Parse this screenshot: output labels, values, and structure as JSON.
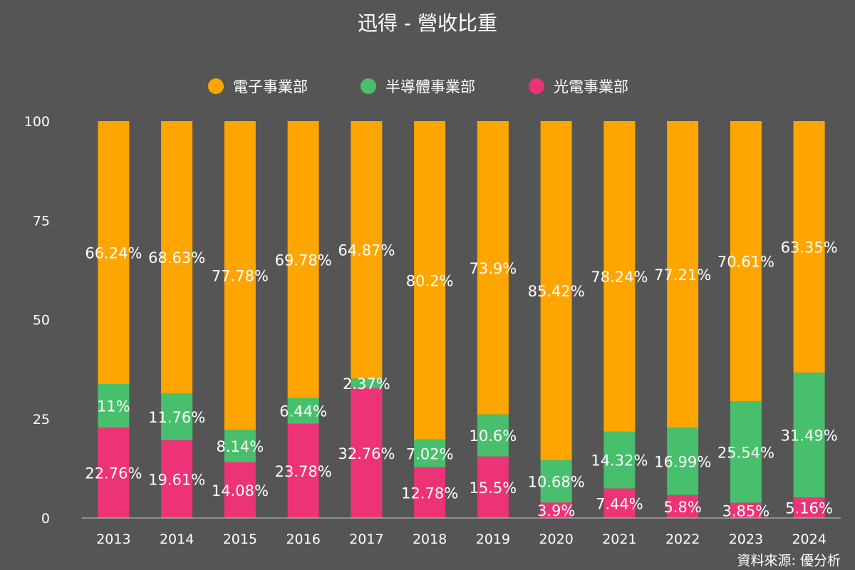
{
  "chart_data": {
    "type": "bar",
    "stacked": true,
    "title": "迅得 - 營收比重",
    "categories": [
      "2013",
      "2014",
      "2015",
      "2016",
      "2017",
      "2018",
      "2019",
      "2020",
      "2021",
      "2022",
      "2023",
      "2024"
    ],
    "series": [
      {
        "name": "光電事業部",
        "color": "#ec3377",
        "values": [
          22.76,
          19.61,
          14.08,
          23.78,
          32.76,
          12.78,
          15.5,
          3.9,
          7.44,
          5.8,
          3.85,
          5.16
        ],
        "labels": [
          "22.76%",
          "19.61%",
          "14.08%",
          "23.78%",
          "32.76%",
          "12.78%",
          "15.5%",
          "3.9%",
          "7.44%",
          "5.8%",
          "3.85%",
          "5.16%"
        ]
      },
      {
        "name": "半導體事業部",
        "color": "#48bf6c",
        "values": [
          11,
          11.76,
          8.14,
          6.44,
          2.37,
          7.02,
          10.6,
          10.68,
          14.32,
          16.99,
          25.54,
          31.49
        ],
        "labels": [
          "11%",
          "11.76%",
          "8.14%",
          "6.44%",
          "2.37%",
          "7.02%",
          "10.6%",
          "10.68%",
          "14.32%",
          "16.99%",
          "25.54%",
          "31.49%"
        ]
      },
      {
        "name": "電子事業部",
        "color": "#ffa500",
        "values": [
          66.24,
          68.63,
          77.78,
          69.78,
          64.87,
          80.2,
          73.9,
          85.42,
          78.24,
          77.21,
          70.61,
          63.35
        ],
        "labels": [
          "66.24%",
          "68.63%",
          "77.78%",
          "69.78%",
          "64.87%",
          "80.2%",
          "73.9%",
          "85.42%",
          "78.24%",
          "77.21%",
          "70.61%",
          "63.35%"
        ]
      }
    ],
    "legend_order": [
      "電子事業部",
      "半導體事業部",
      "光電事業部"
    ],
    "ylim": [
      0,
      100
    ],
    "yticks": [
      0,
      25,
      50,
      75,
      100
    ],
    "grid": false,
    "legend_position": "top"
  },
  "source": "資料來源: 優分析"
}
